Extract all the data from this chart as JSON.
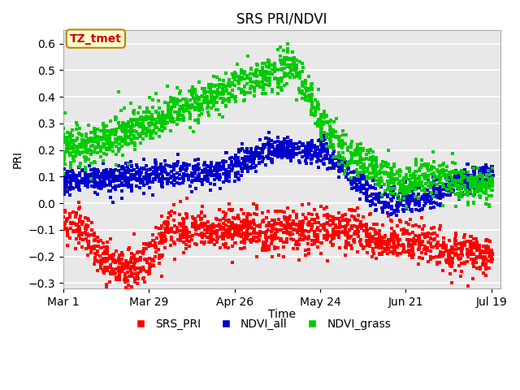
{
  "title": "SRS PRI/NDVI",
  "xlabel": "Time",
  "ylabel": "PRI",
  "ylim": [
    -0.32,
    0.65
  ],
  "yticks": [
    -0.3,
    -0.2,
    -0.1,
    0.0,
    0.1,
    0.2,
    0.3,
    0.4,
    0.5,
    0.6
  ],
  "xtick_labels": [
    "Mar 1",
    "Mar 29",
    "Apr 26",
    "May 24",
    "Jun 21",
    "Jul 19"
  ],
  "annotation_text": "TZ_tmet",
  "annotation_bbox_facecolor": "#ffffcc",
  "annotation_bbox_edgecolor": "#b8860b",
  "annotation_text_color": "#cc0000",
  "colors": {
    "SRS_PRI": "#ff0000",
    "NDVI_all": "#0000cc",
    "NDVI_grass": "#00cc00"
  },
  "background_color": "#e8e8e8",
  "grid_color": "#ffffff",
  "marker_size": 9
}
